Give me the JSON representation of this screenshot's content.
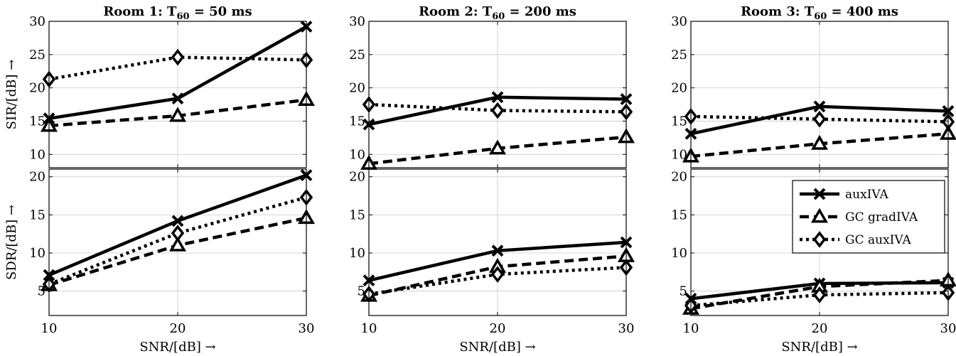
{
  "chart_data": {
    "type": "line",
    "x": [
      10,
      20,
      30
    ],
    "xlim": [
      10,
      30
    ],
    "xticks": [
      "10",
      "20",
      "30"
    ],
    "xlabel": "SNR/[dB] →",
    "rows": [
      {
        "ylabel": "SIR/[dB] →"
      },
      {
        "ylabel": "SDR/[dB] →"
      }
    ],
    "legend": {
      "position": "upper-right of bottom-right panel",
      "entries": [
        "auxIVA",
        "GC gradIVA",
        "GC auxIVA"
      ]
    },
    "series_styles": [
      {
        "name": "auxIVA",
        "line": "solid",
        "marker": "x"
      },
      {
        "name": "GC gradIVA",
        "line": "dashed",
        "marker": "triangle"
      },
      {
        "name": "GC auxIVA",
        "line": "dotted",
        "marker": "diamond"
      }
    ],
    "panels": [
      {
        "title": "Room 1: T60 = 50 ms",
        "row": 0,
        "col": 0,
        "ylim": [
          8,
          30
        ],
        "yticks": [
          "10",
          "15",
          "20",
          "25",
          "30"
        ],
        "series": [
          {
            "name": "auxIVA",
            "values": [
              15.4,
              18.4,
              29.2
            ]
          },
          {
            "name": "GC gradIVA",
            "values": [
              14.3,
              15.8,
              18.2
            ]
          },
          {
            "name": "GC auxIVA",
            "values": [
              21.3,
              24.6,
              24.2
            ]
          }
        ]
      },
      {
        "title": "Room 2: T60 = 200 ms",
        "row": 0,
        "col": 1,
        "ylim": [
          8,
          30
        ],
        "yticks": [
          "10",
          "15",
          "20",
          "25",
          "30"
        ],
        "series": [
          {
            "name": "auxIVA",
            "values": [
              14.5,
              18.6,
              18.3
            ]
          },
          {
            "name": "GC gradIVA",
            "values": [
              8.6,
              10.9,
              12.6
            ]
          },
          {
            "name": "GC auxIVA",
            "values": [
              17.5,
              16.6,
              16.4
            ]
          }
        ]
      },
      {
        "title": "Room 3: T60 = 400 ms",
        "row": 0,
        "col": 2,
        "ylim": [
          8,
          30
        ],
        "yticks": [
          "10",
          "15",
          "20",
          "25",
          "30"
        ],
        "series": [
          {
            "name": "auxIVA",
            "values": [
              13.1,
              17.2,
              16.5
            ]
          },
          {
            "name": "GC gradIVA",
            "values": [
              9.7,
              11.6,
              13.1
            ]
          },
          {
            "name": "GC auxIVA",
            "values": [
              15.7,
              15.3,
              14.9
            ]
          }
        ]
      },
      {
        "title": "",
        "row": 1,
        "col": 0,
        "ylim": [
          1.8,
          21
        ],
        "yticks": [
          "5",
          "10",
          "15",
          "20"
        ],
        "series": [
          {
            "name": "auxIVA",
            "values": [
              7.1,
              14.2,
              20.2
            ]
          },
          {
            "name": "GC gradIVA",
            "values": [
              5.8,
              11.0,
              14.6
            ]
          },
          {
            "name": "GC auxIVA",
            "values": [
              5.9,
              12.6,
              17.3
            ]
          }
        ]
      },
      {
        "title": "",
        "row": 1,
        "col": 1,
        "ylim": [
          1.8,
          21
        ],
        "yticks": [
          "5",
          "10",
          "15",
          "20"
        ],
        "series": [
          {
            "name": "auxIVA",
            "values": [
              6.4,
              10.3,
              11.4
            ]
          },
          {
            "name": "GC gradIVA",
            "values": [
              4.4,
              8.2,
              9.6
            ]
          },
          {
            "name": "GC auxIVA",
            "values": [
              4.6,
              7.2,
              8.1
            ]
          }
        ]
      },
      {
        "title": "",
        "row": 1,
        "col": 2,
        "ylim": [
          1.8,
          21
        ],
        "yticks": [
          "5",
          "10",
          "15",
          "20"
        ],
        "series": [
          {
            "name": "auxIVA",
            "values": [
              4.0,
              6.0,
              6.1
            ]
          },
          {
            "name": "GC gradIVA",
            "values": [
              2.7,
              5.6,
              6.4
            ]
          },
          {
            "name": "GC auxIVA",
            "values": [
              3.1,
              4.5,
              4.8
            ]
          }
        ]
      }
    ]
  }
}
